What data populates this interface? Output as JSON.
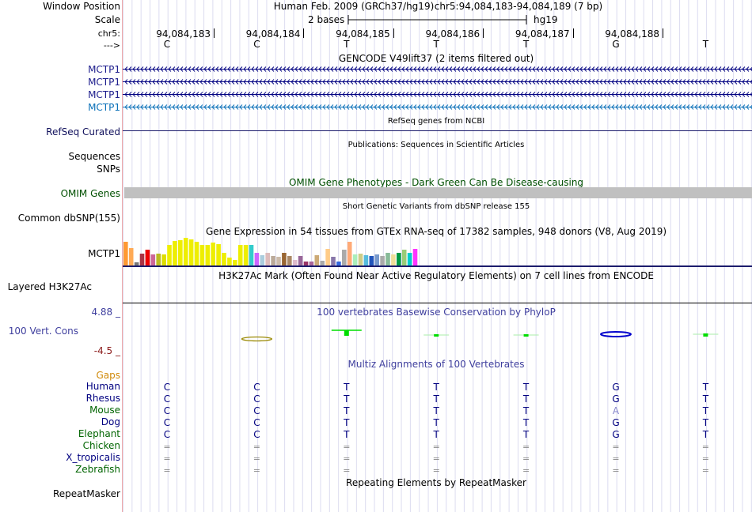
{
  "header": {
    "window_position_label": "Window Position",
    "scale_label": "Scale",
    "chr_label": "chr5:",
    "strand_label": "--->",
    "assembly": "Human Feb. 2009 (GRCh37/hg19)",
    "position": "chr5:94,084,183-94,084,189 (7 bp)",
    "scale_bases": "2 bases",
    "db": "hg19"
  },
  "ruler": {
    "positions": [
      "94,084,183",
      "94,084,184",
      "94,084,185",
      "94,084,186",
      "94,084,187",
      "94,084,188"
    ],
    "bases": [
      "C",
      "C",
      "T",
      "T",
      "T",
      "G",
      "T"
    ]
  },
  "tracks": {
    "gencode_title": "GENCODE V49lift37 (2 items filtered out)",
    "gencode_genes": [
      "MCTP1",
      "MCTP1",
      "MCTP1",
      "MCTP1"
    ],
    "refseq_desc": "RefSeq genes from NCBI",
    "refseq_label": "RefSeq Curated",
    "publications_desc": "Publications: Sequences in Scientific Articles",
    "sequences_label": "Sequences",
    "snps_label": "SNPs",
    "omim_desc": "OMIM Gene Phenotypes - Dark Green Can Be Disease-causing",
    "omim_label": "OMIM Genes",
    "dbsnp_desc": "Short Genetic Variants from dbSNP release 155",
    "dbsnp_label": "Common dbSNP(155)",
    "gtex_desc": "Gene Expression in 54 tissues from GTEx RNA-seq of 17382 samples, 948 donors (V8, Aug 2019)",
    "gtex_label": "MCTP1",
    "h3k27ac_desc": "H3K27Ac Mark (Often Found Near Active Regulatory Elements) on 7 cell lines from ENCODE",
    "h3k27ac_label": "Layered H3K27Ac",
    "phylop_desc": "100 vertebrates Basewise Conservation by PhyloP",
    "cons_label": "100 Vert. Cons",
    "cons_max": "4.88 _",
    "cons_min": "-4.5 _",
    "multiz_desc": "Multiz Alignments of 100 Vertebrates",
    "gaps_label": "Gaps",
    "repeat_desc": "Repeating Elements by RepeatMasker",
    "repeat_label": "RepeatMasker"
  },
  "alignment": {
    "species": [
      {
        "name": "Human",
        "seq": [
          "C",
          "C",
          "T",
          "T",
          "T",
          "G",
          "T"
        ],
        "type": "base"
      },
      {
        "name": "Rhesus",
        "seq": [
          "C",
          "C",
          "T",
          "T",
          "T",
          "G",
          "T"
        ],
        "type": "base"
      },
      {
        "name": "Mouse",
        "seq": [
          "C",
          "C",
          "T",
          "T",
          "T",
          "A",
          "T"
        ],
        "type": "base"
      },
      {
        "name": "Dog",
        "seq": [
          "C",
          "C",
          "T",
          "T",
          "T",
          "G",
          "T"
        ],
        "type": "base"
      },
      {
        "name": "Elephant",
        "seq": [
          "C",
          "C",
          "T",
          "T",
          "T",
          "G",
          "T"
        ],
        "type": "base"
      },
      {
        "name": "Chicken",
        "seq": [
          "=",
          "=",
          "=",
          "=",
          "=",
          "=",
          "="
        ],
        "type": "gap"
      },
      {
        "name": "X_tropicalis",
        "seq": [
          "=",
          "=",
          "=",
          "=",
          "=",
          "=",
          "="
        ],
        "type": "gap"
      },
      {
        "name": "Zebrafish",
        "seq": [
          "=",
          "=",
          "=",
          "=",
          "=",
          "=",
          "="
        ],
        "type": "gap"
      }
    ],
    "colors": {
      "Human": "#000080",
      "Rhesus": "#000080",
      "Mouse": "#006400",
      "Dog": "#000080",
      "Elephant": "#006400",
      "Chicken": "#006400",
      "X_tropicalis": "#000080",
      "Zebrafish": "#006400"
    }
  },
  "gtex": {
    "tissue_values": [
      30,
      22,
      4,
      15,
      20,
      14,
      15,
      14,
      26,
      31,
      32,
      35,
      33,
      30,
      26,
      26,
      29,
      27,
      16,
      10,
      7,
      26,
      26,
      26,
      16,
      13,
      16,
      12,
      11,
      16,
      12,
      7,
      12,
      5,
      5,
      13,
      6,
      21,
      11,
      5,
      20,
      30,
      14,
      15,
      13,
      12,
      14,
      12,
      16,
      14,
      16,
      20,
      16,
      21
    ],
    "tissue_colors": [
      "#FF9933",
      "#FFAA55",
      "#777777",
      "#AA3344",
      "#EE0000",
      "#CC6699",
      "#BBBB22",
      "#DDDD00",
      "#EEEE00",
      "#EEEE00",
      "#EEEE00",
      "#EEEE00",
      "#EEEE00",
      "#EEEE00",
      "#EEEE00",
      "#EEEE00",
      "#EEEE00",
      "#EEEE00",
      "#EEEE00",
      "#EEEE00",
      "#EEEE00",
      "#EEEE00",
      "#EEEE00",
      "#33CCCC",
      "#CC66FF",
      "#AACCDD",
      "#DDBBBB",
      "#BBAA99",
      "#CCBBAA",
      "#996633",
      "#AA8866",
      "#DDBBCC",
      "#996699",
      "#993366",
      "#AA6699",
      "#CCAA77",
      "#AAAAAA",
      "#FFCC88",
      "#8877AA",
      "#3366DD",
      "#AAAAAA",
      "#FFAA77",
      "#AAEEBB",
      "#CCCC88",
      "#55BBDD",
      "#2255BB",
      "#7799CC",
      "#AAAAAA",
      "#88BB99",
      "#EEDD99",
      "#009944",
      "#99CC77",
      "#00CCCC",
      "#FF33FF"
    ]
  },
  "colors": {
    "navy": "#000080",
    "omim_bar": "#C0C0C0",
    "phylop_green": "#00DD00",
    "phylop_blue": "#0000CC",
    "phylop_olive": "#998800",
    "gene_teal": "#0A70B8"
  }
}
